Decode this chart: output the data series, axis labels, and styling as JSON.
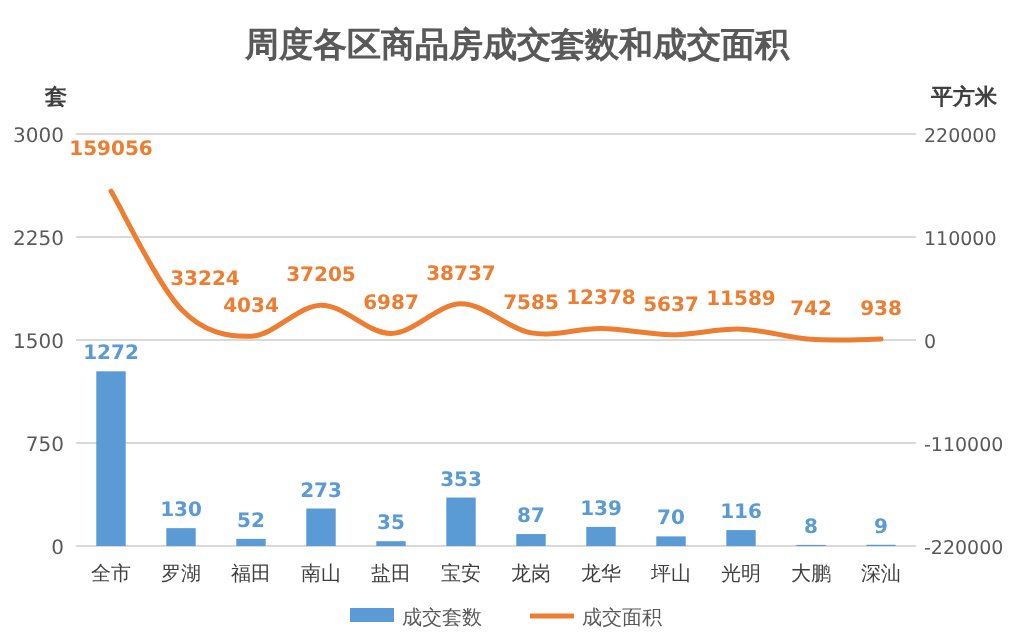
{
  "chart_data": {
    "type": "bar",
    "title": "周度各区商品房成交套数和成交面积",
    "categories": [
      "全市",
      "罗湖",
      "福田",
      "南山",
      "盐田",
      "宝安",
      "龙岗",
      "龙华",
      "坪山",
      "光明",
      "大鹏",
      "深汕"
    ],
    "series": [
      {
        "name": "成交套数",
        "color": "#5b9bd5",
        "values": [
          1272,
          130,
          52,
          273,
          35,
          353,
          87,
          139,
          70,
          116,
          8,
          9
        ]
      },
      {
        "name": "成交面积",
        "type": "line",
        "axis": "y2",
        "color": "#ed7d31",
        "values": [
          159056,
          33224,
          4034,
          37205,
          6987,
          38737,
          7585,
          12378,
          5637,
          11589,
          742,
          938
        ]
      }
    ],
    "ylabel": "套",
    "y2label": "平方米",
    "ylim": [
      0,
      3000
    ],
    "yticks": [
      0,
      750,
      1500,
      2250,
      3000
    ],
    "y2lim": [
      -220000,
      220000
    ],
    "y2ticks": [
      -220000,
      -110000,
      0,
      110000,
      220000
    ],
    "grid": "y",
    "legend": "bottom",
    "data_labels": true
  }
}
